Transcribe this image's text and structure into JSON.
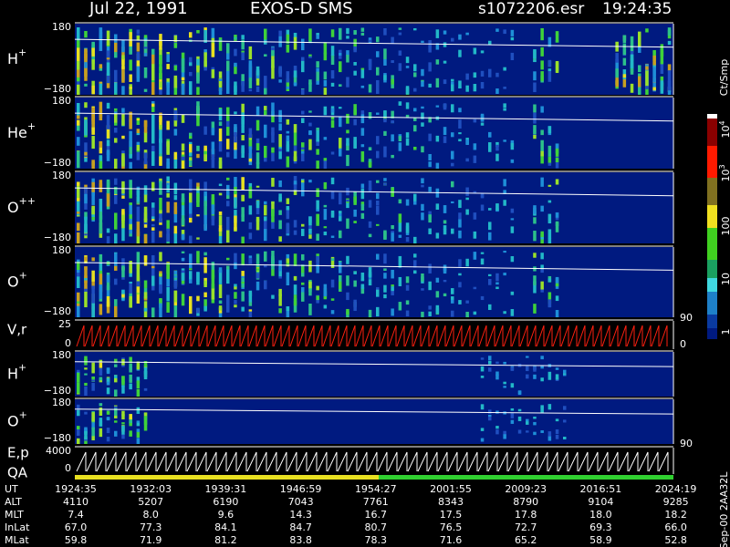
{
  "header": {
    "date": "Jul 22, 1991",
    "instrument": "EXOS-D SMS",
    "file": "s1072206.esr",
    "time": "19:24:35"
  },
  "panels": [
    {
      "ion": "H",
      "charge": "+",
      "top": "180",
      "bottom": "−180"
    },
    {
      "ion": "He",
      "charge": "+",
      "top": "180",
      "bottom": "−180"
    },
    {
      "ion": "O",
      "charge": "++",
      "top": "180",
      "bottom": "−180"
    },
    {
      "ion": "O",
      "charge": "+",
      "top": "180",
      "bottom": "−180"
    },
    {
      "label": "V,r",
      "top": "25",
      "bottom": "0",
      "right_top": "90",
      "right_bottom": "0"
    },
    {
      "ion": "H",
      "charge": "+",
      "top": "180",
      "bottom": "−180"
    },
    {
      "ion": "O",
      "charge": "+",
      "top": "180",
      "bottom": "−180",
      "right_bottom": "90"
    },
    {
      "label": "E,p",
      "label2": "QA",
      "top": "4000",
      "bottom": "0"
    }
  ],
  "colorbar": {
    "title": "Ct/Smp",
    "labels": [
      {
        "base": "10",
        "exp": "4"
      },
      {
        "base": "10",
        "exp": "3"
      },
      "100",
      "10",
      "1"
    ]
  },
  "footer": {
    "rows": [
      {
        "label": "UT",
        "values": [
          "1924:35",
          "1932:03",
          "1939:31",
          "1946:59",
          "1954:27",
          "2001:55",
          "2009:23",
          "2016:51",
          "2024:19"
        ]
      },
      {
        "label": "ALT",
        "values": [
          "4110",
          "5207",
          "6190",
          "7043",
          "7761",
          "8343",
          "8790",
          "9104",
          "9285"
        ]
      },
      {
        "label": "MLT",
        "values": [
          "7.4",
          "8.0",
          "9.6",
          "14.3",
          "16.7",
          "17.5",
          "17.8",
          "18.0",
          "18.2"
        ]
      },
      {
        "label": "InLat",
        "values": [
          "67.0",
          "77.3",
          "84.1",
          "84.7",
          "80.7",
          "76.5",
          "72.7",
          "69.3",
          "66.0"
        ]
      },
      {
        "label": "MLat",
        "values": [
          "59.8",
          "71.9",
          "81.2",
          "83.8",
          "78.3",
          "71.6",
          "65.2",
          "58.9",
          "52.8"
        ]
      }
    ]
  },
  "stamp": "Sep-00 2AA32L"
}
